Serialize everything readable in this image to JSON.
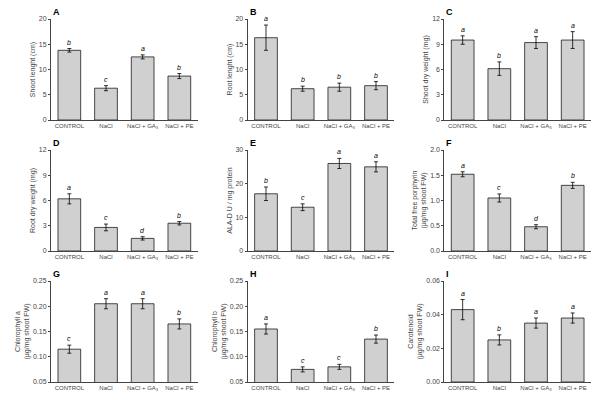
{
  "chart_data": [
    {
      "type": "bar",
      "title": "A",
      "ylabel": "Shoot lenght (cm)",
      "categories": [
        "CONTROL",
        "NaCl",
        "NaCl + GA₃",
        "NaCl + PE"
      ],
      "values": [
        13.8,
        6.3,
        12.5,
        8.7
      ],
      "errors": [
        0.35,
        0.5,
        0.4,
        0.5
      ],
      "annotations": [
        "b",
        "c",
        "a",
        "b"
      ],
      "ylim": [
        0,
        20
      ],
      "yticks": [
        0,
        5,
        10,
        15,
        20
      ],
      "color": "#d0d0d0",
      "grid": false
    },
    {
      "type": "bar",
      "title": "B",
      "ylabel": "Root lenght (cm)",
      "categories": [
        "CONTROL",
        "NaCl",
        "NaCl + GA₃",
        "NaCl + PE"
      ],
      "values": [
        16.3,
        6.2,
        6.5,
        6.8
      ],
      "errors": [
        2.5,
        0.5,
        0.8,
        0.8
      ],
      "annotations": [
        "a",
        "b",
        "b",
        "b"
      ],
      "ylim": [
        0,
        20
      ],
      "yticks": [
        0,
        5,
        10,
        15,
        20
      ],
      "color": "#d0d0d0",
      "grid": false
    },
    {
      "type": "bar",
      "title": "C",
      "ylabel": "Shoot dry weight (mg)",
      "categories": [
        "CONTROL",
        "NaCl",
        "NaCl + GA₃",
        "NaCl + PE"
      ],
      "values": [
        9.5,
        6.1,
        9.2,
        9.5
      ],
      "errors": [
        0.5,
        0.8,
        0.7,
        1.0
      ],
      "annotations": [
        "a",
        "b",
        "a",
        "a"
      ],
      "ylim": [
        0,
        12
      ],
      "yticks": [
        0,
        3,
        6,
        9,
        12
      ],
      "color": "#d0d0d0",
      "grid": false
    },
    {
      "type": "bar",
      "title": "D",
      "ylabel": "Root dry weight (mg)",
      "categories": [
        "CONTROL",
        "NaCl",
        "NaCl + GA₃",
        "NaCl + PE"
      ],
      "values": [
        6.2,
        2.8,
        1.5,
        3.3
      ],
      "errors": [
        0.6,
        0.4,
        0.2,
        0.2
      ],
      "annotations": [
        "a",
        "c",
        "d",
        "b"
      ],
      "ylim": [
        0,
        12
      ],
      "yticks": [
        0,
        3,
        6,
        9,
        12
      ],
      "color": "#d0d0d0",
      "grid": false
    },
    {
      "type": "bar",
      "title": "E",
      "ylabel": "ALA-D U / mg protein",
      "categories": [
        "CONTROL",
        "NaCl",
        "NaCl + GA₃",
        "NaCl + PE"
      ],
      "values": [
        17.0,
        13.0,
        26.0,
        25.0
      ],
      "errors": [
        2.0,
        1.0,
        1.5,
        1.5
      ],
      "annotations": [
        "b",
        "c",
        "a",
        "a"
      ],
      "ylim": [
        0,
        30
      ],
      "yticks": [
        0,
        10,
        20,
        30
      ],
      "color": "#d0d0d0",
      "grid": false
    },
    {
      "type": "bar",
      "title": "F",
      "ylabel": "Total free porphyrin\n(μg/mg shoot FW)",
      "categories": [
        "CONTROL",
        "NaCl",
        "NaCl + GA₃",
        "NaCl + PE"
      ],
      "values": [
        1.52,
        1.05,
        0.48,
        1.3
      ],
      "errors": [
        0.05,
        0.08,
        0.04,
        0.06
      ],
      "annotations": [
        "a",
        "c",
        "d",
        "b"
      ],
      "ylim": [
        0,
        2.0
      ],
      "yticks": [
        {
          "value": 0.0,
          "label": "0.0"
        },
        0.5,
        {
          "value": 1.0,
          "label": "1.0"
        },
        1.5,
        {
          "value": 2.0,
          "label": "2.0"
        }
      ],
      "color": "#d0d0d0",
      "grid": false
    },
    {
      "type": "bar",
      "title": "G",
      "ylabel": "Chlorophyll a\n(μg/mg shoot FW)",
      "categories": [
        "CONTROL",
        "NaCl",
        "NaCl + GA₃",
        "NaCl + PE"
      ],
      "values": [
        0.115,
        0.205,
        0.205,
        0.165
      ],
      "errors": [
        0.008,
        0.01,
        0.01,
        0.01
      ],
      "annotations": [
        "c",
        "a",
        "a",
        "b"
      ],
      "ylim": [
        0.05,
        0.25
      ],
      "yticks": [
        0.05,
        {
          "value": 0.1,
          "label": "0.10"
        },
        0.15,
        {
          "value": 0.2,
          "label": "0.20"
        },
        0.25
      ],
      "color": "#d0d0d0",
      "grid": false
    },
    {
      "type": "bar",
      "title": "H",
      "ylabel": "Chlorophyll b\n(μg/mg shoot FW)",
      "categories": [
        "CONTROL",
        "NaCl",
        "NaCl + GA₃",
        "NaCl + PE"
      ],
      "values": [
        0.155,
        0.075,
        0.08,
        0.135
      ],
      "errors": [
        0.01,
        0.005,
        0.005,
        0.008
      ],
      "annotations": [
        "a",
        "c",
        "c",
        "b"
      ],
      "ylim": [
        0.05,
        0.25
      ],
      "yticks": [
        0.05,
        {
          "value": 0.1,
          "label": "0.10"
        },
        0.15,
        {
          "value": 0.2,
          "label": "0.20"
        },
        0.25
      ],
      "color": "#d0d0d0",
      "grid": false
    },
    {
      "type": "bar",
      "title": "I",
      "ylabel": "Carotenoid\n(μg/mg shoot FW)",
      "categories": [
        "CONTROL",
        "NaCl",
        "NaCl + GA₃",
        "NaCl + PE"
      ],
      "values": [
        0.043,
        0.025,
        0.035,
        0.038
      ],
      "errors": [
        0.006,
        0.003,
        0.003,
        0.003
      ],
      "annotations": [
        "a",
        "b",
        "a",
        "a"
      ],
      "ylim": [
        0.0,
        0.06
      ],
      "yticks": [
        {
          "value": 0.0,
          "label": "0.00"
        },
        0.02,
        0.04,
        0.06
      ],
      "color": "#d0d0d0",
      "grid": false
    }
  ]
}
